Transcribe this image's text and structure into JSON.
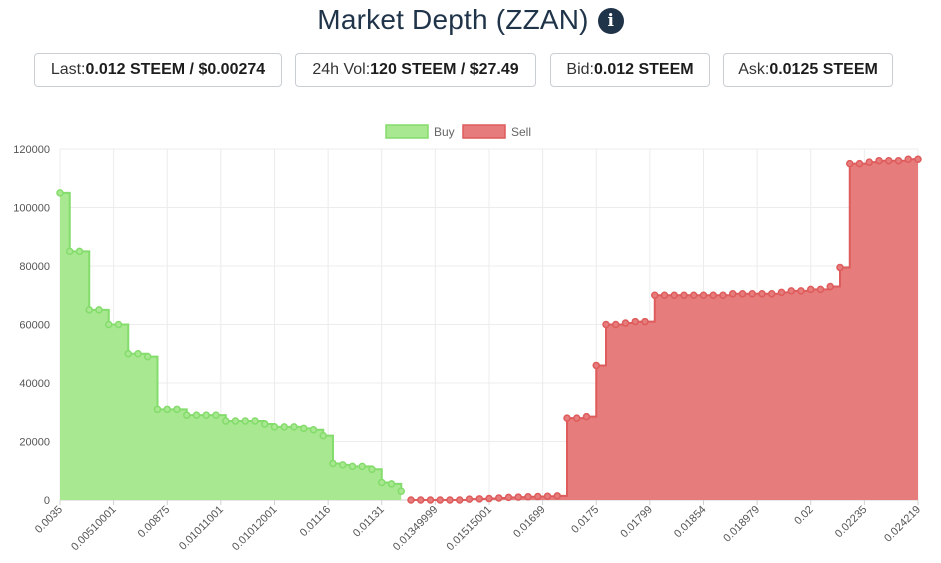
{
  "header": {
    "title": "Market Depth (ZZAN)",
    "info_icon": "info-icon"
  },
  "stats": [
    {
      "label": "Last: ",
      "value": "0.012 STEEM / $0.00274"
    },
    {
      "label": "24h Vol: ",
      "value": "120 STEEM / $27.49"
    },
    {
      "label": "Bid: ",
      "value": "0.012 STEEM"
    },
    {
      "label": "Ask: ",
      "value": "0.0125 STEEM"
    }
  ],
  "chart_data": {
    "type": "area",
    "title": "",
    "xlabel": "",
    "ylabel": "",
    "ylim": [
      0,
      120000
    ],
    "y_ticks": [
      "0",
      "20000",
      "40000",
      "60000",
      "80000",
      "100000",
      "120000"
    ],
    "x_tick_labels": [
      "0.0035",
      "0.00510001",
      "0.00875",
      "0.01011001",
      "0.01012001",
      "0.01116",
      "0.01131",
      "0.01349999",
      "0.01515001",
      "0.01699",
      "0.0175",
      "0.01799",
      "0.01854",
      "0.018979",
      "0.02",
      "0.02235",
      "0.024219"
    ],
    "grid": true,
    "legend_position": "top-center",
    "colors": {
      "buy_fill": "#a8e890",
      "buy_line": "#84dc6c",
      "sell_fill": "#e77c7c",
      "sell_line": "#de5c5c"
    },
    "series": [
      {
        "name": "Buy",
        "values": [
          105000,
          85000,
          85000,
          65000,
          65000,
          60000,
          60000,
          50000,
          50000,
          49000,
          31000,
          31000,
          31000,
          29000,
          29000,
          29000,
          29000,
          27000,
          27000,
          27000,
          27000,
          26000,
          25000,
          25000,
          25000,
          24500,
          24000,
          22000,
          12500,
          12000,
          11500,
          11500,
          10500,
          6000,
          5500,
          3000
        ]
      },
      {
        "name": "Sell",
        "values": [
          0,
          0,
          0,
          0,
          0,
          0,
          300,
          400,
          500,
          700,
          900,
          1000,
          1100,
          1200,
          1300,
          1400,
          28000,
          28000,
          28500,
          46000,
          60000,
          60000,
          60500,
          61000,
          61000,
          70000,
          70000,
          70000,
          70000,
          70000,
          70000,
          70000,
          70000,
          70500,
          70500,
          70500,
          70500,
          70500,
          71000,
          71500,
          71500,
          72000,
          72000,
          73000,
          79500,
          115000,
          115000,
          115500,
          116000,
          116000,
          116000,
          116500,
          116500
        ]
      }
    ]
  }
}
